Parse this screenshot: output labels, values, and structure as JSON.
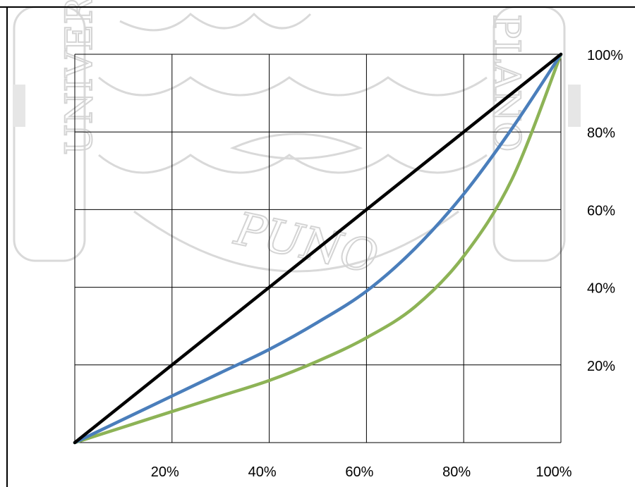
{
  "watermark": {
    "text_left": "UNIVER",
    "text_right": "PLANO",
    "text_center": "PUNO"
  },
  "chart_data": {
    "type": "line",
    "title": "",
    "xlabel": "",
    "ylabel": "",
    "x_ticks": [
      "20%",
      "40%",
      "60%",
      "80%",
      "100%"
    ],
    "y_ticks": [
      "20%",
      "40%",
      "60%",
      "80%",
      "100%"
    ],
    "xlim": [
      0,
      100
    ],
    "ylim": [
      0,
      100
    ],
    "grid": true,
    "legend": "none",
    "series": [
      {
        "color": "#000000",
        "x": [
          0,
          20,
          40,
          60,
          80,
          100
        ],
        "y": [
          0,
          20,
          40,
          60,
          80,
          100
        ]
      },
      {
        "color": "#4a7ebb",
        "x": [
          0,
          10,
          20,
          30,
          40,
          50,
          60,
          70,
          80,
          90,
          100
        ],
        "y": [
          0,
          6,
          12,
          18,
          24,
          31,
          39,
          50,
          64,
          81,
          100
        ]
      },
      {
        "color": "#8db356",
        "x": [
          0,
          10,
          20,
          30,
          40,
          50,
          60,
          70,
          80,
          90,
          100
        ],
        "y": [
          0,
          4,
          8,
          12,
          16,
          21,
          27,
          35,
          48,
          68,
          100
        ]
      }
    ]
  }
}
